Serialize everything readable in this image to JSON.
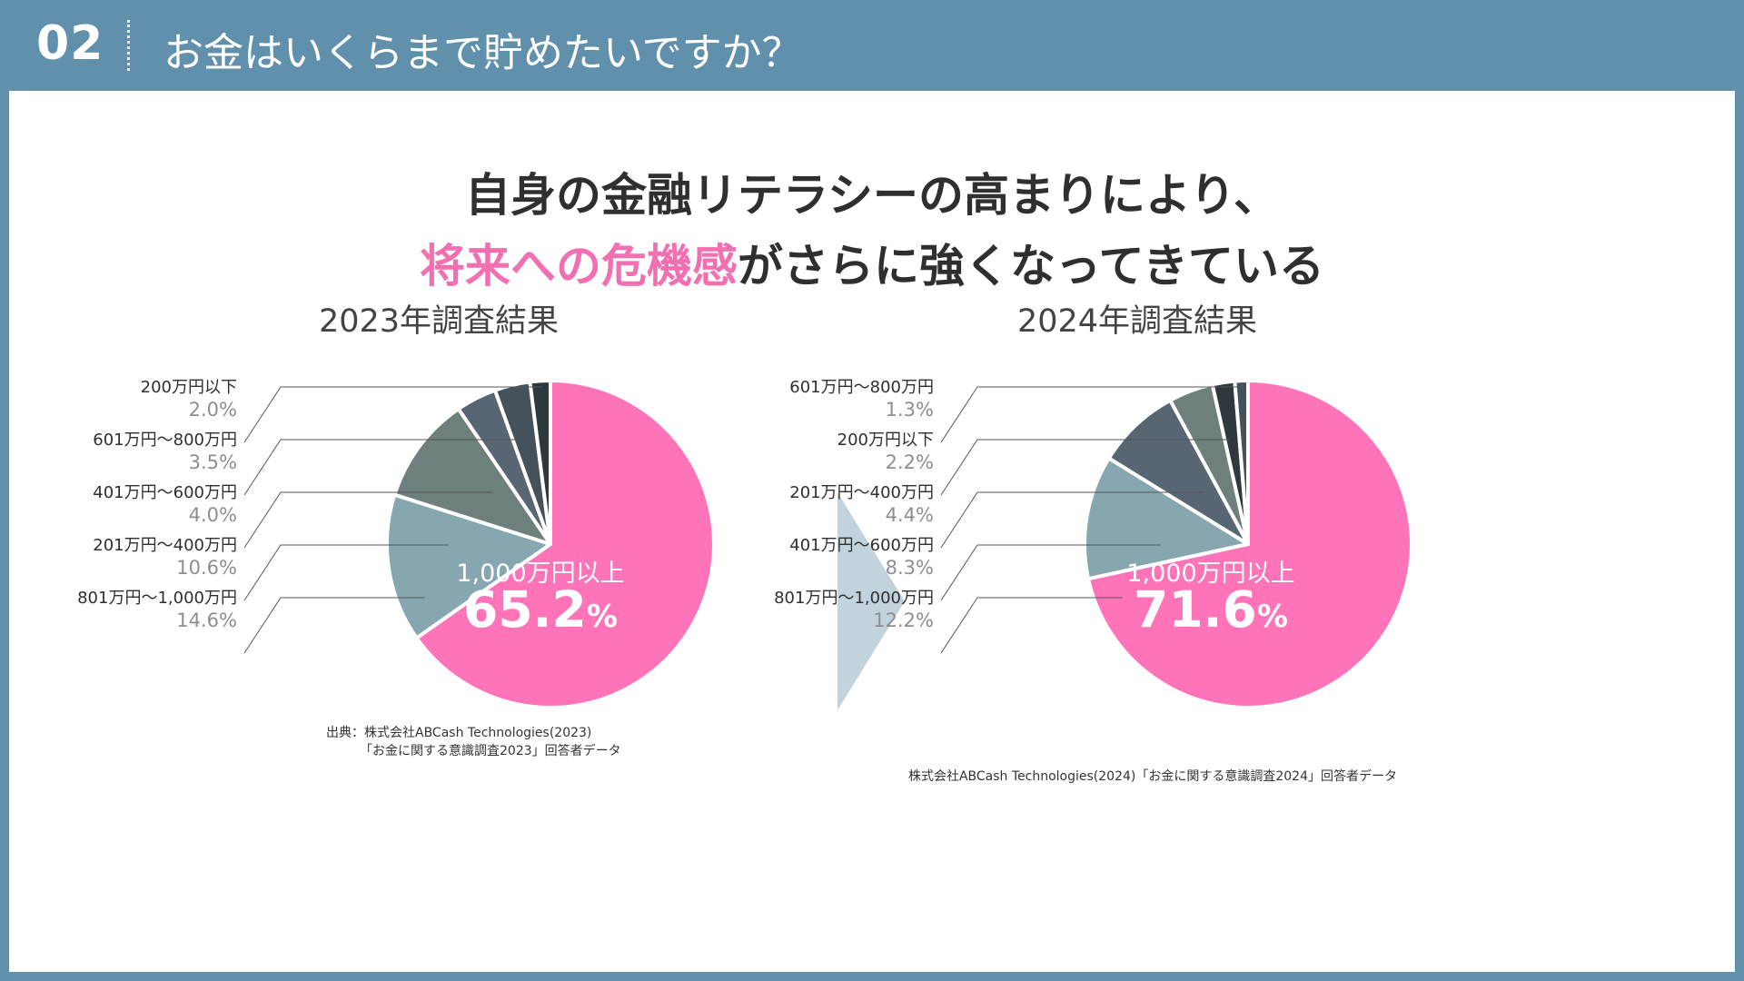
{
  "header": {
    "number": "02",
    "title": "お金はいくらまで貯めたいですか？"
  },
  "headline": {
    "line1": "自身の金融リテラシーの高まりにより、",
    "line2_highlight": "将来への危機感",
    "line2_rest": "がさらに強くなってきている"
  },
  "colors": {
    "header_bg": "#6090AC",
    "highlight": "#F26FB2",
    "arrow": "#C2D3DE"
  },
  "chart_data": [
    {
      "type": "pie",
      "title": "2023年調査結果",
      "main": {
        "label": "1,000万円以上",
        "value": 65.2,
        "display": "65.2",
        "unit": "%",
        "color": "#FF73B9"
      },
      "slices": [
        {
          "label": "801万円～1,000万円",
          "value": 14.6,
          "display": "14.6%",
          "color": "#86A7AF"
        },
        {
          "label": "201万円～400万円",
          "value": 10.6,
          "display": "10.6%",
          "color": "#6E807D"
        },
        {
          "label": "401万円～600万円",
          "value": 4.0,
          "display": "4.0%",
          "color": "#576672"
        },
        {
          "label": "601万円～800万円",
          "value": 3.5,
          "display": "3.5%",
          "color": "#45525B"
        },
        {
          "label": "200万円以下",
          "value": 2.0,
          "display": "2.0%",
          "color": "#2F383D"
        }
      ],
      "source_line1": "出典：株式会社ABCash Technologies(2023)",
      "source_line2": "「お金に関する意識調査2023」回答者データ"
    },
    {
      "type": "pie",
      "title": "2024年調査結果",
      "main": {
        "label": "1,000万円以上",
        "value": 71.6,
        "display": "71.6",
        "unit": "%",
        "color": "#FF73B9"
      },
      "slices": [
        {
          "label": "801万円～1,000万円",
          "value": 12.2,
          "display": "12.2%",
          "color": "#86A7AF"
        },
        {
          "label": "401万円～600万円",
          "value": 8.3,
          "display": "8.3%",
          "color": "#576672"
        },
        {
          "label": "201万円～400万円",
          "value": 4.4,
          "display": "4.4%",
          "color": "#6E807D"
        },
        {
          "label": "200万円以下",
          "value": 2.2,
          "display": "2.2%",
          "color": "#2F383D"
        },
        {
          "label": "601万円～800万円",
          "value": 1.3,
          "display": "1.3%",
          "color": "#45525B"
        }
      ],
      "source_line1": "株式会社ABCash Technologies(2024)「お金に関する意識調査2024」回答者データ"
    }
  ]
}
